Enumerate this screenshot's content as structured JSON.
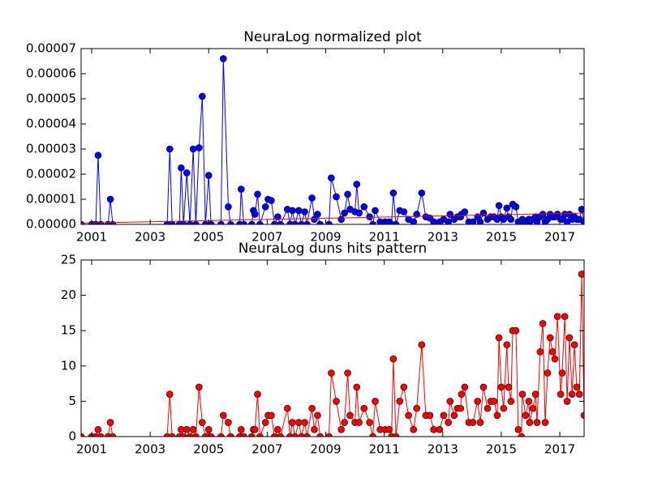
{
  "chart_data": [
    {
      "type": "line",
      "title": "NeuraLog normalized plot",
      "xlim": [
        2000.64,
        2017.83
      ],
      "xticks": [
        2001,
        2003,
        2005,
        2007,
        2009,
        2011,
        2013,
        2015,
        2017
      ],
      "ylim": [
        0,
        7e-05
      ],
      "yticks": [
        {
          "value": 0,
          "label": "0.00000"
        },
        {
          "value": 1e-05,
          "label": "0.00001"
        },
        {
          "value": 2e-05,
          "label": "0.00002"
        },
        {
          "value": 3e-05,
          "label": "0.00003"
        },
        {
          "value": 4e-05,
          "label": "0.00004"
        },
        {
          "value": 5e-05,
          "label": "0.00005"
        },
        {
          "value": 6e-05,
          "label": "0.00006"
        },
        {
          "value": 7e-05,
          "label": "0.00007"
        }
      ],
      "series": [
        {
          "color": "#0000ff",
          "markers": true,
          "x": [
            2000.64,
            2001.0,
            2001.14,
            2001.22,
            2001.31,
            2001.56,
            2001.64,
            2001.72,
            2003.58,
            2003.67,
            2003.75,
            2004.0,
            2004.06,
            2004.14,
            2004.25,
            2004.36,
            2004.47,
            2004.56,
            2004.67,
            2004.78,
            2004.89,
            2005.0,
            2005.08,
            2005.42,
            2005.5,
            2005.67,
            2005.75,
            2006.06,
            2006.11,
            2006.2,
            2006.47,
            2006.53,
            2006.58,
            2006.67,
            2006.75,
            2006.94,
            2007.03,
            2007.14,
            2007.25,
            2007.36,
            2007.45,
            2007.69,
            2007.78,
            2007.86,
            2007.95,
            2008.08,
            2008.17,
            2008.28,
            2008.36,
            2008.53,
            2008.61,
            2008.72,
            2008.81,
            2009.11,
            2009.19,
            2009.36,
            2009.53,
            2009.64,
            2009.75,
            2009.83,
            2010.0,
            2010.06,
            2010.14,
            2010.31,
            2010.5,
            2010.61,
            2010.69,
            2010.86,
            2011.03,
            2011.17,
            2011.25,
            2011.31,
            2011.4,
            2011.53,
            2011.67,
            2011.83,
            2012.0,
            2012.11,
            2012.28,
            2012.42,
            2012.56,
            2012.69,
            2012.89,
            2013.03,
            2013.19,
            2013.25,
            2013.39,
            2013.5,
            2013.61,
            2013.64,
            2013.75,
            2013.89,
            2014.03,
            2014.19,
            2014.28,
            2014.39,
            2014.53,
            2014.64,
            2014.75,
            2014.86,
            2014.92,
            2015.0,
            2015.08,
            2015.19,
            2015.25,
            2015.33,
            2015.39,
            2015.5,
            2015.58,
            2015.69,
            2015.72,
            2015.83,
            2015.94,
            2015.97,
            2016.08,
            2016.17,
            2016.22,
            2016.33,
            2016.42,
            2016.5,
            2016.58,
            2016.67,
            2016.75,
            2016.83,
            2016.92,
            2017.03,
            2017.08,
            2017.17,
            2017.25,
            2017.33,
            2017.42,
            2017.5,
            2017.58,
            2017.67,
            2017.75,
            2017.83
          ],
          "values": [
            0,
            0,
            0,
            2.75e-05,
            0,
            0,
            1e-05,
            0,
            0,
            3e-05,
            0,
            0,
            2.25e-05,
            0,
            2.05e-05,
            0,
            3e-05,
            0,
            3.05e-05,
            5.1e-05,
            0,
            1.95e-05,
            0,
            0,
            6.6e-05,
            7e-06,
            0,
            0,
            1.4e-05,
            0,
            0,
            5.5e-06,
            4e-06,
            1.2e-05,
            0,
            7e-06,
            1e-05,
            9.5e-06,
            0,
            3e-06,
            0,
            6e-06,
            0,
            5.5e-06,
            0,
            5.5e-06,
            0,
            5e-06,
            0,
            1.05e-05,
            2e-06,
            4e-06,
            0,
            0,
            1.85e-05,
            1.1e-05,
            2e-06,
            4.5e-06,
            1.2e-05,
            6e-06,
            5e-06,
            1.6e-05,
            4.5e-06,
            7e-06,
            3e-06,
            0,
            5.5e-06,
            1e-06,
            1e-06,
            1e-06,
            0,
            1.25e-05,
            0,
            5.5e-06,
            5e-06,
            2e-06,
            1e-06,
            4e-06,
            1.25e-05,
            3e-06,
            2.5e-06,
            1e-06,
            1e-06,
            2e-06,
            1e-06,
            4e-06,
            2e-06,
            3e-06,
            3e-06,
            4e-06,
            5e-06,
            1e-06,
            1e-06,
            3e-06,
            1e-06,
            4.5e-06,
            2e-06,
            3e-06,
            3e-06,
            2e-06,
            7.5e-06,
            3e-06,
            2e-06,
            6.5e-06,
            3e-06,
            2e-06,
            8e-06,
            7e-06,
            1e-06,
            0,
            2e-06,
            1e-06,
            2e-06,
            1e-06,
            2e-06,
            3e-06,
            1e-06,
            3e-06,
            4e-06,
            1e-06,
            2e-06,
            4e-06,
            3e-06,
            3e-06,
            4e-06,
            2e-06,
            2e-06,
            4e-06,
            1e-06,
            4e-06,
            2e-06,
            3e-06,
            2e-06,
            2e-06,
            6e-06,
            1e-06
          ]
        },
        {
          "color": "#ff0000",
          "markers": false,
          "x": [
            2000.64,
            2017.83
          ],
          "values": [
            5e-07,
            4.5e-06
          ]
        }
      ]
    },
    {
      "type": "line",
      "title": "NeuraLog duns hits pattern",
      "xlim": [
        2000.64,
        2017.83
      ],
      "xticks": [
        2001,
        2003,
        2005,
        2007,
        2009,
        2011,
        2013,
        2015,
        2017
      ],
      "ylim": [
        0,
        25
      ],
      "yticks": [
        0,
        5,
        10,
        15,
        20,
        25
      ],
      "series": [
        {
          "color": "#ff0000",
          "markers": true,
          "x": [
            2000.64,
            2001.0,
            2001.14,
            2001.22,
            2001.31,
            2001.56,
            2001.64,
            2001.72,
            2003.58,
            2003.67,
            2003.75,
            2004.0,
            2004.06,
            2004.14,
            2004.25,
            2004.36,
            2004.47,
            2004.56,
            2004.67,
            2004.78,
            2004.89,
            2005.0,
            2005.08,
            2005.42,
            2005.5,
            2005.67,
            2005.75,
            2006.06,
            2006.11,
            2006.2,
            2006.47,
            2006.53,
            2006.58,
            2006.67,
            2006.75,
            2006.94,
            2007.03,
            2007.14,
            2007.25,
            2007.36,
            2007.45,
            2007.69,
            2007.78,
            2007.86,
            2007.95,
            2008.08,
            2008.17,
            2008.28,
            2008.36,
            2008.53,
            2008.61,
            2008.72,
            2008.81,
            2009.11,
            2009.19,
            2009.36,
            2009.53,
            2009.64,
            2009.75,
            2009.83,
            2010.0,
            2010.06,
            2010.14,
            2010.31,
            2010.5,
            2010.61,
            2010.69,
            2010.86,
            2011.03,
            2011.17,
            2011.25,
            2011.31,
            2011.4,
            2011.53,
            2011.67,
            2011.83,
            2012.0,
            2012.11,
            2012.28,
            2012.42,
            2012.56,
            2012.69,
            2012.89,
            2013.03,
            2013.19,
            2013.25,
            2013.39,
            2013.5,
            2013.61,
            2013.64,
            2013.75,
            2013.89,
            2014.03,
            2014.19,
            2014.28,
            2014.39,
            2014.53,
            2014.64,
            2014.75,
            2014.86,
            2014.92,
            2015.0,
            2015.08,
            2015.19,
            2015.25,
            2015.33,
            2015.39,
            2015.5,
            2015.58,
            2015.69,
            2015.72,
            2015.83,
            2015.94,
            2015.97,
            2016.08,
            2016.17,
            2016.22,
            2016.33,
            2016.42,
            2016.5,
            2016.58,
            2016.67,
            2016.75,
            2016.83,
            2016.92,
            2017.03,
            2017.08,
            2017.17,
            2017.25,
            2017.33,
            2017.42,
            2017.5,
            2017.58,
            2017.67,
            2017.75,
            2017.83
          ],
          "values": [
            0,
            0,
            0,
            1,
            0,
            0,
            2,
            0,
            0,
            6,
            0,
            0,
            1,
            0,
            1,
            0,
            1,
            0,
            7,
            2,
            0,
            1,
            0,
            0,
            3,
            2,
            0,
            0,
            1,
            0,
            0,
            1,
            1,
            6,
            0,
            2,
            3,
            3,
            0,
            1,
            0,
            4,
            0,
            2,
            0,
            2,
            0,
            2,
            0,
            4,
            1,
            3,
            0,
            0,
            9,
            5,
            1,
            2,
            9,
            3,
            2,
            7,
            2,
            4,
            2,
            0,
            5,
            1,
            1,
            1,
            0,
            11,
            0,
            5,
            7,
            3,
            1,
            4,
            13,
            3,
            3,
            1,
            1,
            3,
            2,
            5,
            3,
            4,
            4,
            6,
            7,
            2,
            2,
            5,
            2,
            7,
            4,
            5,
            5,
            3,
            14,
            7,
            4,
            13,
            7,
            5,
            15,
            15,
            1,
            0,
            6,
            3,
            5,
            2,
            4,
            6,
            2,
            12,
            16,
            2,
            9,
            14,
            12,
            11,
            17,
            6,
            9,
            17,
            5,
            14,
            6,
            13,
            7,
            6,
            23,
            3
          ]
        }
      ]
    }
  ]
}
